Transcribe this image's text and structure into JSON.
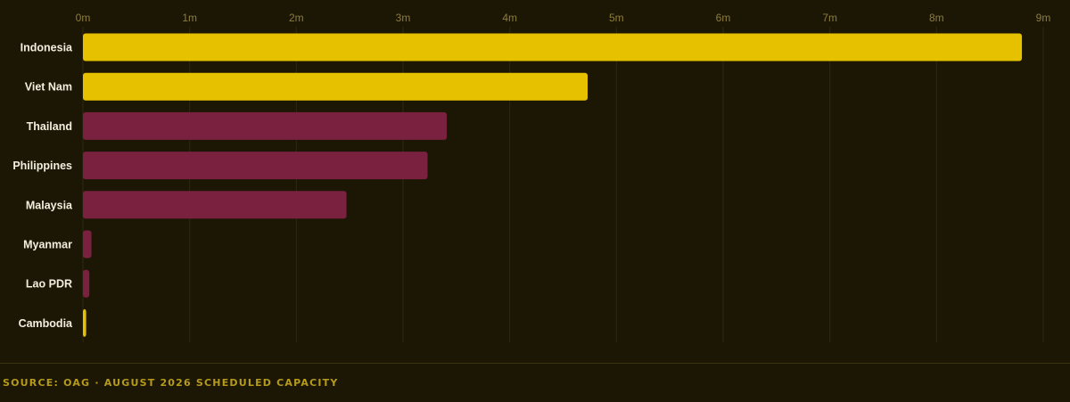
{
  "chart_data": {
    "type": "bar",
    "orientation": "horizontal",
    "categories": [
      "Indonesia",
      "Viet Nam",
      "Thailand",
      "Philippines",
      "Malaysia",
      "Myanmar",
      "Lao PDR",
      "Cambodia"
    ],
    "values": [
      8.8,
      4.73,
      3.41,
      3.23,
      2.47,
      0.08,
      0.06,
      0.03
    ],
    "highlight": [
      true,
      true,
      false,
      false,
      false,
      false,
      false,
      true
    ],
    "xlim": [
      0,
      9
    ],
    "xticks": [
      "0m",
      "1m",
      "2m",
      "3m",
      "4m",
      "5m",
      "6m",
      "7m",
      "8m",
      "9m"
    ],
    "axis_position": "top",
    "grid": true,
    "colors": {
      "highlight": "#e5c100",
      "default": "#7a2140",
      "background": "#1c1704",
      "grid": "#2e2810"
    }
  },
  "footer": {
    "source": "SOURCE: OAG · AUGUST 2026 SCHEDULED CAPACITY"
  }
}
